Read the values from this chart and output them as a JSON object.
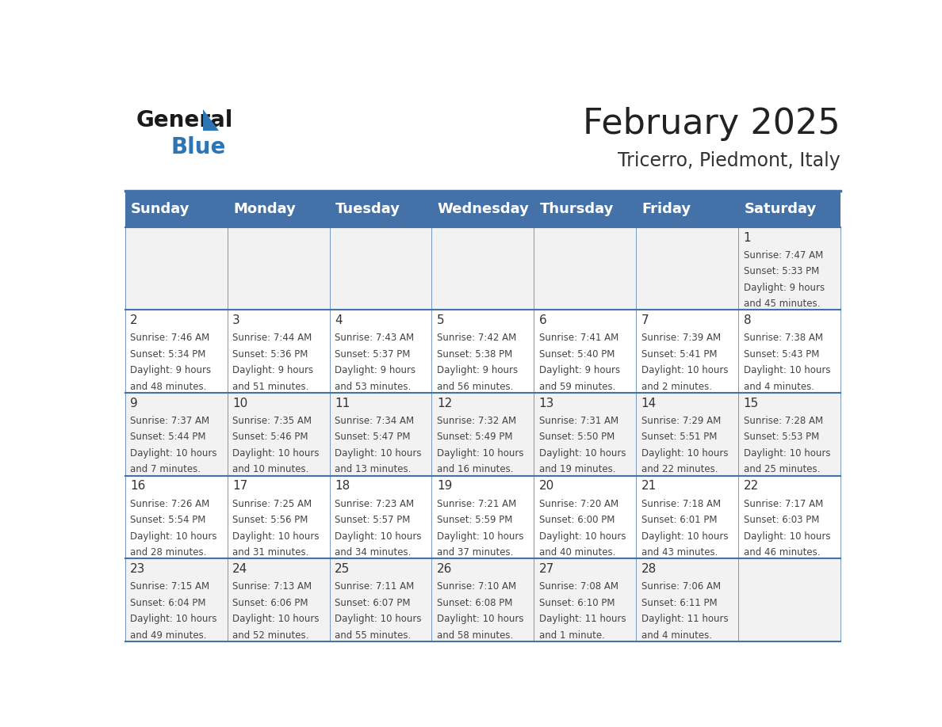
{
  "title": "February 2025",
  "subtitle": "Tricerro, Piedmont, Italy",
  "header_color": "#4472a8",
  "header_text_color": "#ffffff",
  "days_of_week": [
    "Sunday",
    "Monday",
    "Tuesday",
    "Wednesday",
    "Thursday",
    "Friday",
    "Saturday"
  ],
  "background_color": "#ffffff",
  "cell_bg_even": "#f2f2f2",
  "cell_bg_odd": "#ffffff",
  "border_color": "#4472a8",
  "title_color": "#222222",
  "subtitle_color": "#333333",
  "day_number_color": "#333333",
  "info_color": "#444444",
  "calendar_data": [
    [
      null,
      null,
      null,
      null,
      null,
      null,
      {
        "day": 1,
        "sunrise": "7:47 AM",
        "sunset": "5:33 PM",
        "daylight_line1": "9 hours",
        "daylight_line2": "and 45 minutes."
      }
    ],
    [
      {
        "day": 2,
        "sunrise": "7:46 AM",
        "sunset": "5:34 PM",
        "daylight_line1": "9 hours",
        "daylight_line2": "and 48 minutes."
      },
      {
        "day": 3,
        "sunrise": "7:44 AM",
        "sunset": "5:36 PM",
        "daylight_line1": "9 hours",
        "daylight_line2": "and 51 minutes."
      },
      {
        "day": 4,
        "sunrise": "7:43 AM",
        "sunset": "5:37 PM",
        "daylight_line1": "9 hours",
        "daylight_line2": "and 53 minutes."
      },
      {
        "day": 5,
        "sunrise": "7:42 AM",
        "sunset": "5:38 PM",
        "daylight_line1": "9 hours",
        "daylight_line2": "and 56 minutes."
      },
      {
        "day": 6,
        "sunrise": "7:41 AM",
        "sunset": "5:40 PM",
        "daylight_line1": "9 hours",
        "daylight_line2": "and 59 minutes."
      },
      {
        "day": 7,
        "sunrise": "7:39 AM",
        "sunset": "5:41 PM",
        "daylight_line1": "10 hours",
        "daylight_line2": "and 2 minutes."
      },
      {
        "day": 8,
        "sunrise": "7:38 AM",
        "sunset": "5:43 PM",
        "daylight_line1": "10 hours",
        "daylight_line2": "and 4 minutes."
      }
    ],
    [
      {
        "day": 9,
        "sunrise": "7:37 AM",
        "sunset": "5:44 PM",
        "daylight_line1": "10 hours",
        "daylight_line2": "and 7 minutes."
      },
      {
        "day": 10,
        "sunrise": "7:35 AM",
        "sunset": "5:46 PM",
        "daylight_line1": "10 hours",
        "daylight_line2": "and 10 minutes."
      },
      {
        "day": 11,
        "sunrise": "7:34 AM",
        "sunset": "5:47 PM",
        "daylight_line1": "10 hours",
        "daylight_line2": "and 13 minutes."
      },
      {
        "day": 12,
        "sunrise": "7:32 AM",
        "sunset": "5:49 PM",
        "daylight_line1": "10 hours",
        "daylight_line2": "and 16 minutes."
      },
      {
        "day": 13,
        "sunrise": "7:31 AM",
        "sunset": "5:50 PM",
        "daylight_line1": "10 hours",
        "daylight_line2": "and 19 minutes."
      },
      {
        "day": 14,
        "sunrise": "7:29 AM",
        "sunset": "5:51 PM",
        "daylight_line1": "10 hours",
        "daylight_line2": "and 22 minutes."
      },
      {
        "day": 15,
        "sunrise": "7:28 AM",
        "sunset": "5:53 PM",
        "daylight_line1": "10 hours",
        "daylight_line2": "and 25 minutes."
      }
    ],
    [
      {
        "day": 16,
        "sunrise": "7:26 AM",
        "sunset": "5:54 PM",
        "daylight_line1": "10 hours",
        "daylight_line2": "and 28 minutes."
      },
      {
        "day": 17,
        "sunrise": "7:25 AM",
        "sunset": "5:56 PM",
        "daylight_line1": "10 hours",
        "daylight_line2": "and 31 minutes."
      },
      {
        "day": 18,
        "sunrise": "7:23 AM",
        "sunset": "5:57 PM",
        "daylight_line1": "10 hours",
        "daylight_line2": "and 34 minutes."
      },
      {
        "day": 19,
        "sunrise": "7:21 AM",
        "sunset": "5:59 PM",
        "daylight_line1": "10 hours",
        "daylight_line2": "and 37 minutes."
      },
      {
        "day": 20,
        "sunrise": "7:20 AM",
        "sunset": "6:00 PM",
        "daylight_line1": "10 hours",
        "daylight_line2": "and 40 minutes."
      },
      {
        "day": 21,
        "sunrise": "7:18 AM",
        "sunset": "6:01 PM",
        "daylight_line1": "10 hours",
        "daylight_line2": "and 43 minutes."
      },
      {
        "day": 22,
        "sunrise": "7:17 AM",
        "sunset": "6:03 PM",
        "daylight_line1": "10 hours",
        "daylight_line2": "and 46 minutes."
      }
    ],
    [
      {
        "day": 23,
        "sunrise": "7:15 AM",
        "sunset": "6:04 PM",
        "daylight_line1": "10 hours",
        "daylight_line2": "and 49 minutes."
      },
      {
        "day": 24,
        "sunrise": "7:13 AM",
        "sunset": "6:06 PM",
        "daylight_line1": "10 hours",
        "daylight_line2": "and 52 minutes."
      },
      {
        "day": 25,
        "sunrise": "7:11 AM",
        "sunset": "6:07 PM",
        "daylight_line1": "10 hours",
        "daylight_line2": "and 55 minutes."
      },
      {
        "day": 26,
        "sunrise": "7:10 AM",
        "sunset": "6:08 PM",
        "daylight_line1": "10 hours",
        "daylight_line2": "and 58 minutes."
      },
      {
        "day": 27,
        "sunrise": "7:08 AM",
        "sunset": "6:10 PM",
        "daylight_line1": "11 hours",
        "daylight_line2": "and 1 minute."
      },
      {
        "day": 28,
        "sunrise": "7:06 AM",
        "sunset": "6:11 PM",
        "daylight_line1": "11 hours",
        "daylight_line2": "and 4 minutes."
      },
      null
    ]
  ],
  "logo_text_general": "General",
  "logo_text_blue": "Blue",
  "header_font_size": 13,
  "day_number_font_size": 11,
  "info_font_size": 8.5,
  "title_font_size": 32,
  "subtitle_font_size": 17
}
